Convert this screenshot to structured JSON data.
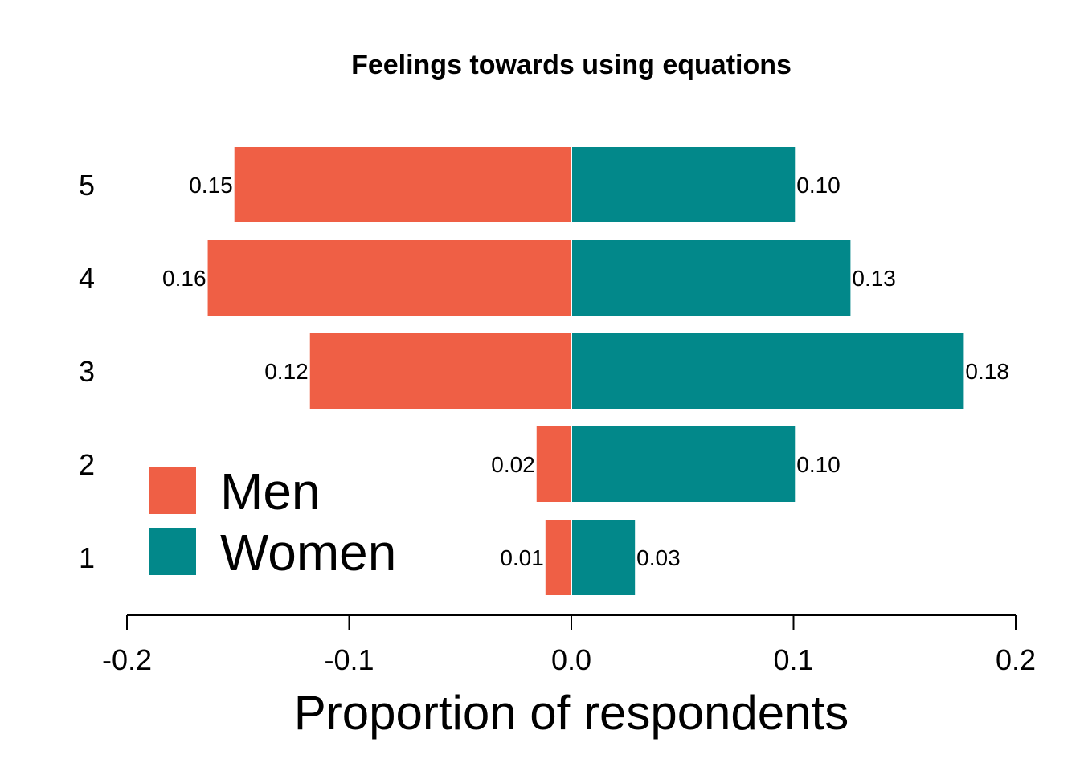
{
  "chart_data": {
    "type": "bar",
    "orientation": "horizontal-diverging",
    "title": "Feelings towards using equations",
    "xlabel": "Proportion of respondents",
    "ylabel": "",
    "categories": [
      "1",
      "2",
      "3",
      "4",
      "5"
    ],
    "series": [
      {
        "name": "Men",
        "color": "#ef5f45",
        "values": [
          0.012,
          0.016,
          0.118,
          0.164,
          0.152
        ],
        "labels": [
          "0.01",
          "0.02",
          "0.12",
          "0.16",
          "0.15"
        ]
      },
      {
        "name": "Women",
        "color": "#02888a",
        "values": [
          0.029,
          0.101,
          0.177,
          0.126,
          0.101
        ],
        "labels": [
          "0.03",
          "0.10",
          "0.18",
          "0.13",
          "0.10"
        ]
      }
    ],
    "xlim": [
      -0.2,
      0.2
    ],
    "xticks": [
      -0.2,
      -0.1,
      0.0,
      0.1,
      0.2
    ],
    "xtick_labels": [
      "-0.2",
      "-0.1",
      "0.0",
      "0.1",
      "0.2"
    ],
    "grid": false,
    "legend_position": "bottom-left"
  }
}
